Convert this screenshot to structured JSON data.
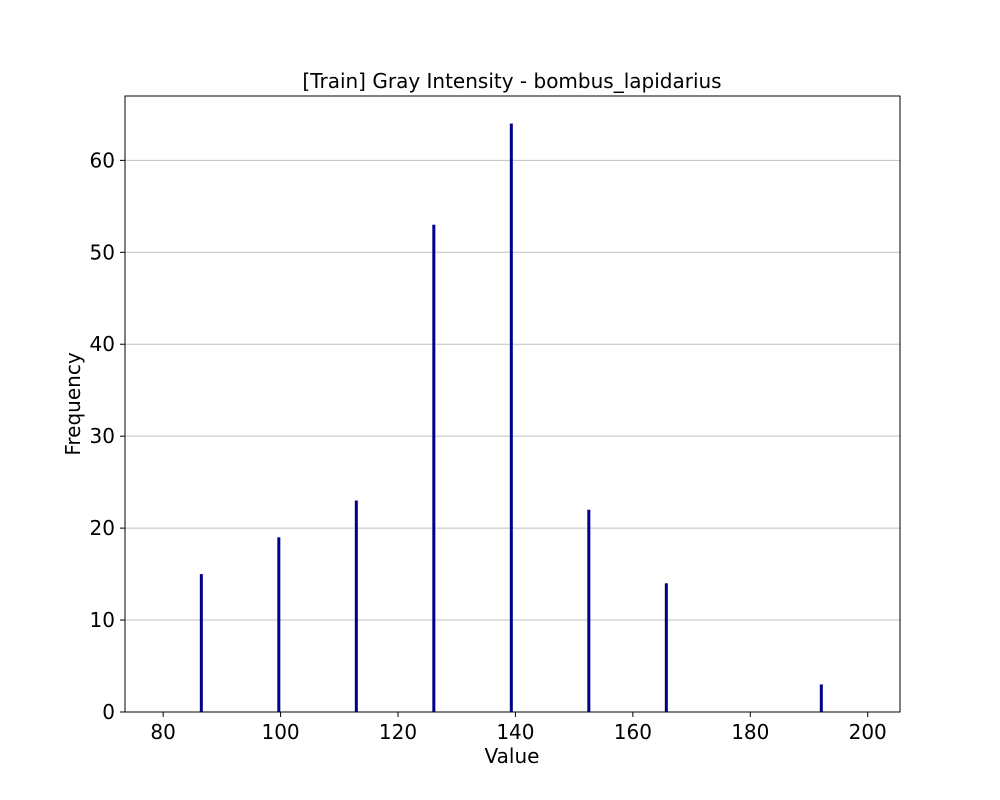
{
  "chart_data": {
    "type": "bar",
    "title": "[Train] Gray Intensity - bombus_lapidarius",
    "xlabel": "Value",
    "ylabel": "Frequency",
    "xlim": [
      73.5,
      205.5
    ],
    "ylim": [
      0,
      67
    ],
    "xticks": [
      80,
      100,
      120,
      140,
      160,
      180,
      200
    ],
    "yticks": [
      0,
      10,
      20,
      30,
      40,
      50,
      60
    ],
    "grid": {
      "axis": "y",
      "on": true
    },
    "bar_color": "#00008b",
    "grid_color": "#c0c0c0",
    "points": [
      {
        "x": 86.5,
        "y": 15
      },
      {
        "x": 99.7,
        "y": 19
      },
      {
        "x": 112.9,
        "y": 23
      },
      {
        "x": 126.1,
        "y": 53
      },
      {
        "x": 139.3,
        "y": 64
      },
      {
        "x": 152.5,
        "y": 22
      },
      {
        "x": 165.7,
        "y": 14
      },
      {
        "x": 192.1,
        "y": 3
      }
    ]
  }
}
